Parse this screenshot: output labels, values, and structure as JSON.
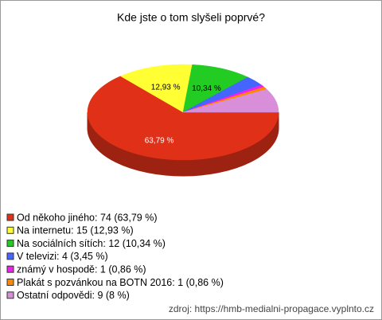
{
  "chart_data": {
    "type": "pie",
    "title": "Kde jste o tom slyšeli poprvé?",
    "categories": [
      "Od někoho jiného: 74 (63,79 %)",
      "Na internetu: 15 (12,93 %)",
      "Na sociálních sítích: 12 (10,34 %)",
      "V televizi: 4 (3,45 %)",
      "známý v hospodě: 1 (0,86 %)",
      "Plakát s pozvánkou na BOTN 2016: 1 (0,86 %)",
      "Ostatní odpovědi: 9 (8 %)"
    ],
    "values": [
      63.79,
      12.93,
      10.34,
      3.45,
      0.86,
      0.86,
      8
    ],
    "value_labels": [
      "63,79 %",
      "12,93 %",
      "10,34 %",
      null,
      null,
      null,
      null
    ],
    "colors": [
      "#e03018",
      "#ffff33",
      "#22cc22",
      "#4466ff",
      "#ee22ee",
      "#ff8800",
      "#d98ed9"
    ],
    "legend": "bottom-left",
    "source": "zdroj: https://hmb-medialni-propagace.vyplnto.cz"
  }
}
